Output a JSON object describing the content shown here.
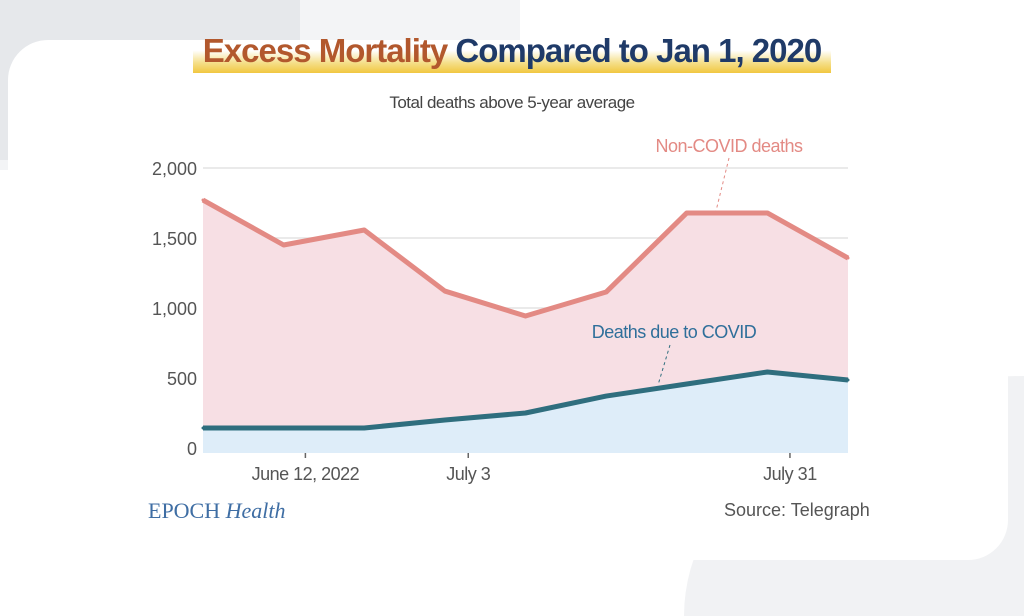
{
  "title_part1": "Excess Mortality",
  "title_part2": "Compared to Jan 1, 2020",
  "subtitle": "Total deaths above 5-year average",
  "logo": {
    "brand": "EPOCH",
    "product": "Health"
  },
  "source": "Source: Telegraph",
  "chart_data": {
    "type": "area",
    "stacked": true,
    "title": "Excess Mortality Compared to Jan 1, 2020",
    "subtitle": "Total deaths above 5-year average",
    "xlabel": "",
    "ylabel": "",
    "ylim": [
      0,
      2000
    ],
    "yticks": [
      0,
      500,
      1000,
      1500,
      2000
    ],
    "ytick_labels": [
      "0",
      "500",
      "1,000",
      "1,500",
      "2,000"
    ],
    "x": [
      0,
      1,
      2,
      3,
      4,
      5,
      6,
      7,
      8
    ],
    "xticks": [
      {
        "pos": 1.27,
        "label": "June 12, 2022"
      },
      {
        "pos": 3.29,
        "label": "July 3"
      },
      {
        "pos": 7.28,
        "label": "July 31"
      }
    ],
    "grid": "horizontal",
    "series": [
      {
        "name": "Deaths due to COVID",
        "color": "#2f6e7e",
        "fill": "#deedf9",
        "label_color": "#2f6f9a",
        "values": [
          143,
          143,
          143,
          200,
          250,
          371,
          457,
          543,
          486
        ]
      },
      {
        "name": "Non-COVID deaths",
        "note": "stacked top line = total excess deaths",
        "color": "#e38a84",
        "fill": "#f7dfe4",
        "label_color": "#e38a84",
        "values": [
          1771,
          1450,
          1557,
          1121,
          943,
          1114,
          1679,
          1679,
          1357
        ]
      }
    ]
  }
}
